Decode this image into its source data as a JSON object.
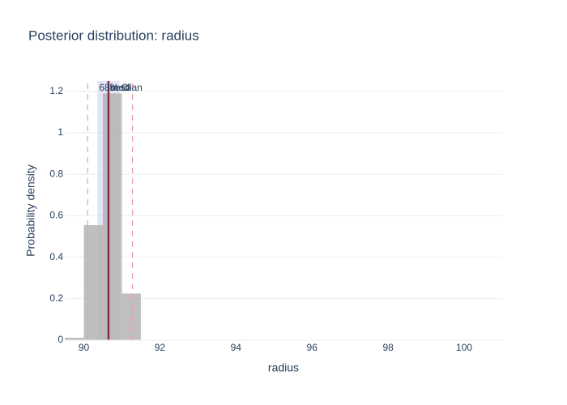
{
  "chart_data": {
    "type": "histogram",
    "title": "Posterior distribution: radius",
    "x_label": "radius",
    "y_label": "Probability density",
    "bins": [
      89.5,
      90,
      90.5,
      91,
      91.5,
      92,
      92.5,
      93,
      93.5,
      94,
      94.5,
      95,
      95.5,
      96,
      96.5,
      97,
      97.5,
      98,
      98.5,
      99,
      99.5,
      100,
      100.5,
      101
    ],
    "values": [
      0.012,
      0.555,
      1.19,
      0.225,
      0.002,
      0,
      0,
      0.002,
      0,
      0,
      0.002,
      0,
      0.002,
      0,
      0,
      0,
      0,
      0,
      0,
      0,
      0,
      0,
      0
    ],
    "color": "#b4b4b4",
    "ci_band": {
      "label": "68% CI",
      "lo": 90.36,
      "hi": 90.94,
      "color": "#c5cbee"
    },
    "lines": [
      {
        "label": "best",
        "value": 90.64,
        "color": "#1f2a7a"
      },
      {
        "label": "median",
        "value": 90.66,
        "color": "#d62728"
      }
    ],
    "dashed_lines": [
      90.1,
      91.28
    ],
    "dashed_color": "#e8a0a8",
    "xlim": [
      89.5,
      101
    ],
    "ylim": [
      0,
      1.25
    ],
    "xticks": [
      90,
      92,
      94,
      96,
      98,
      100
    ],
    "yticks": [
      0,
      0.2,
      0.4,
      0.6,
      0.8,
      1,
      1.2
    ],
    "grid": true
  }
}
